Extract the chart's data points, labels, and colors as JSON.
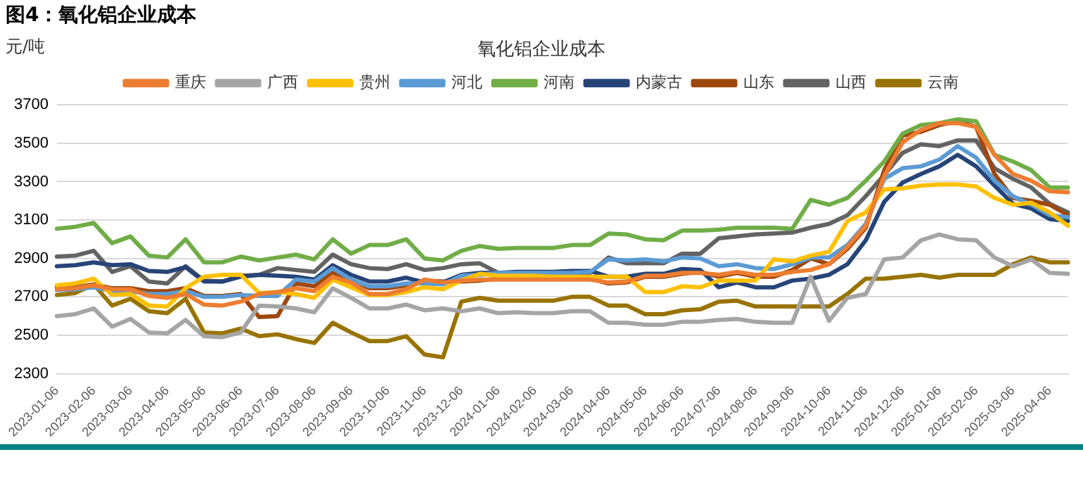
{
  "chart_data": {
    "type": "line",
    "title": "图4：氧化铝企业成本",
    "subtitle": "氧化铝企业成本",
    "ylabel": "元/吨",
    "categories": [
      "2023-01-06",
      null,
      "2023-02-06",
      null,
      "2023-03-06",
      null,
      "2023-04-06",
      null,
      "2023-05-06",
      null,
      "2023-06-06",
      null,
      "2023-07-06",
      null,
      "2023-08-06",
      null,
      "2023-09-06",
      null,
      "2023-10-06",
      null,
      "2023-11-06",
      null,
      "2023-12-06",
      null,
      "2024-01-06",
      null,
      "2024-02-06",
      null,
      "2024-03-06",
      null,
      "2024-04-06",
      null,
      "2024-05-06",
      null,
      "2024-06-06",
      null,
      "2024-07-06",
      null,
      "2024-08-06",
      null,
      "2024-09-06",
      null,
      "2024-10-06",
      null,
      "2024-11-06",
      null,
      "2024-12-06",
      null,
      "2025-01-06",
      null,
      "2025-02-06",
      null,
      "2025-03-06",
      null,
      "2025-04-06",
      null
    ],
    "series": [
      {
        "name": "重庆",
        "color": "#ed7d31",
        "values": [
          2740,
          2745,
          2760,
          2740,
          2740,
          2705,
          2695,
          2715,
          2660,
          2655,
          2675,
          2715,
          2725,
          2745,
          2730,
          2805,
          2775,
          2715,
          2715,
          2740,
          2790,
          2775,
          2785,
          2790,
          2790,
          2790,
          2790,
          2790,
          2790,
          2790,
          2775,
          2780,
          2810,
          2810,
          2825,
          2825,
          2815,
          2830,
          2815,
          2815,
          2830,
          2840,
          2870,
          2960,
          3070,
          3330,
          3505,
          3570,
          3605,
          3605,
          3585,
          3440,
          3340,
          3305,
          3250,
          3245
        ]
      },
      {
        "name": "广西",
        "color": "#a5a5a5",
        "values": [
          2600,
          2610,
          2640,
          2545,
          2585,
          2515,
          2510,
          2580,
          2495,
          2490,
          2515,
          2655,
          2650,
          2640,
          2620,
          2745,
          2695,
          2640,
          2640,
          2660,
          2630,
          2640,
          2625,
          2640,
          2615,
          2620,
          2615,
          2615,
          2625,
          2625,
          2565,
          2565,
          2555,
          2555,
          2570,
          2570,
          2580,
          2585,
          2570,
          2565,
          2565,
          2805,
          2575,
          2695,
          2715,
          2895,
          2905,
          2995,
          3025,
          3000,
          2995,
          2905,
          2860,
          2895,
          2825,
          2820
        ]
      },
      {
        "name": "贵州",
        "color": "#ffc000",
        "values": [
          2760,
          2770,
          2795,
          2710,
          2715,
          2655,
          2650,
          2745,
          2805,
          2815,
          2815,
          2720,
          2725,
          2715,
          2695,
          2790,
          2750,
          2710,
          2710,
          2725,
          2750,
          2740,
          2785,
          2820,
          2810,
          2810,
          2810,
          2805,
          2805,
          2805,
          2805,
          2805,
          2725,
          2725,
          2755,
          2750,
          2785,
          2785,
          2785,
          2895,
          2885,
          2915,
          2935,
          3095,
          3140,
          3260,
          3265,
          3280,
          3285,
          3285,
          3275,
          3215,
          3180,
          3190,
          3140,
          3070
        ]
      },
      {
        "name": "河北",
        "color": "#5b9bd5",
        "values": [
          2735,
          2740,
          2750,
          2730,
          2730,
          2715,
          2715,
          2730,
          2700,
          2700,
          2710,
          2705,
          2705,
          2790,
          2780,
          2850,
          2790,
          2755,
          2755,
          2770,
          2770,
          2765,
          2810,
          2815,
          2825,
          2825,
          2825,
          2825,
          2825,
          2830,
          2895,
          2890,
          2895,
          2885,
          2905,
          2900,
          2860,
          2870,
          2850,
          2845,
          2870,
          2905,
          2905,
          2970,
          3080,
          3315,
          3370,
          3380,
          3415,
          3485,
          3425,
          3305,
          3225,
          3180,
          3125,
          3115
        ]
      },
      {
        "name": "河南",
        "color": "#70ad47",
        "values": [
          3055,
          3065,
          3085,
          2980,
          3015,
          2915,
          2905,
          3000,
          2880,
          2880,
          2910,
          2890,
          2905,
          2920,
          2895,
          3000,
          2925,
          2970,
          2970,
          3000,
          2900,
          2890,
          2940,
          2965,
          2950,
          2955,
          2955,
          2955,
          2970,
          2970,
          3030,
          3025,
          3000,
          2995,
          3045,
          3045,
          3050,
          3060,
          3060,
          3060,
          3055,
          3205,
          3180,
          3215,
          3305,
          3405,
          3550,
          3595,
          3605,
          3625,
          3615,
          3440,
          3405,
          3360,
          3270,
          3270
        ]
      },
      {
        "name": "内蒙古",
        "color": "#264478",
        "values": [
          2860,
          2865,
          2880,
          2865,
          2870,
          2835,
          2830,
          2855,
          2780,
          2780,
          2805,
          2815,
          2810,
          2805,
          2790,
          2865,
          2815,
          2780,
          2780,
          2800,
          2775,
          2775,
          2815,
          2825,
          2825,
          2830,
          2830,
          2830,
          2835,
          2835,
          2805,
          2805,
          2820,
          2820,
          2845,
          2840,
          2750,
          2775,
          2750,
          2750,
          2785,
          2795,
          2815,
          2870,
          2995,
          3195,
          3295,
          3340,
          3380,
          3440,
          3380,
          3280,
          3185,
          3160,
          3105,
          3095
        ]
      },
      {
        "name": "山东",
        "color": "#9e480e",
        "values": [
          2750,
          2750,
          2765,
          2745,
          2745,
          2730,
          2730,
          2745,
          2705,
          2705,
          2715,
          2595,
          2600,
          2770,
          2755,
          2825,
          2785,
          2745,
          2745,
          2760,
          2785,
          2780,
          2780,
          2785,
          2795,
          2795,
          2795,
          2795,
          2795,
          2795,
          2770,
          2775,
          2805,
          2805,
          2820,
          2830,
          2805,
          2825,
          2805,
          2805,
          2840,
          2900,
          2870,
          2950,
          3060,
          3360,
          3540,
          3560,
          3595,
          3615,
          3585,
          3340,
          3215,
          3200,
          3180,
          3125
        ]
      },
      {
        "name": "山西",
        "color": "#636363",
        "values": [
          2910,
          2915,
          2940,
          2830,
          2860,
          2780,
          2770,
          2860,
          2785,
          2780,
          2810,
          2815,
          2850,
          2840,
          2830,
          2920,
          2870,
          2850,
          2845,
          2870,
          2840,
          2850,
          2870,
          2875,
          2825,
          2825,
          2825,
          2825,
          2825,
          2825,
          2905,
          2875,
          2875,
          2875,
          2925,
          2925,
          3005,
          3015,
          3025,
          3030,
          3035,
          3060,
          3080,
          3125,
          3225,
          3335,
          3450,
          3495,
          3485,
          3515,
          3515,
          3370,
          3315,
          3270,
          3185,
          3140
        ]
      },
      {
        "name": "云南",
        "color": "#997300",
        "values": [
          2710,
          2720,
          2765,
          2655,
          2690,
          2625,
          2615,
          2690,
          2515,
          2510,
          2535,
          2495,
          2505,
          2480,
          2460,
          2565,
          2515,
          2470,
          2470,
          2495,
          2400,
          2385,
          2675,
          2695,
          2680,
          2680,
          2680,
          2680,
          2700,
          2700,
          2655,
          2655,
          2610,
          2610,
          2630,
          2635,
          2675,
          2680,
          2650,
          2650,
          2650,
          2650,
          2650,
          2715,
          2795,
          2795,
          2805,
          2815,
          2800,
          2815,
          2815,
          2815,
          2870,
          2905,
          2880,
          2880
        ]
      }
    ],
    "ylim": [
      2300,
      3700
    ],
    "yticks": [
      2300,
      2500,
      2700,
      2900,
      3100,
      3300,
      3500,
      3700
    ],
    "grid": "y",
    "legend": "top",
    "marker": "none",
    "line_style": "solid"
  }
}
